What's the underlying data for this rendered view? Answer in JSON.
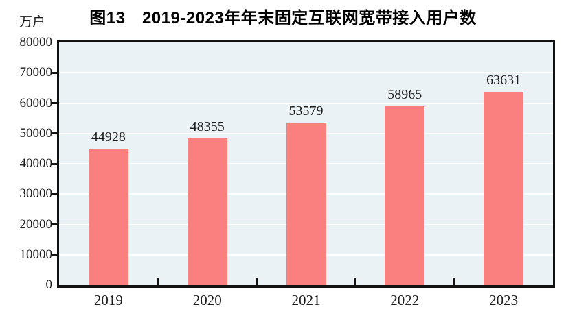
{
  "title": "图13　2019-2023年年末固定互联网宽带接入用户数",
  "unit_label": "万户",
  "chart_data": {
    "type": "bar",
    "title": "图13　2019-2023年年末固定互联网宽带接入用户数",
    "ylabel": "万户",
    "xlabel": "",
    "categories": [
      "2019",
      "2020",
      "2021",
      "2022",
      "2023"
    ],
    "values": [
      44928,
      48355,
      53579,
      58965,
      63631
    ],
    "value_labels_shown": true,
    "ylim": [
      0,
      80000
    ],
    "ytick_interval": 10000,
    "yticks": [
      0,
      10000,
      20000,
      30000,
      40000,
      50000,
      60000,
      70000,
      80000
    ],
    "grid": "horizontal white lines on tinted plot background",
    "legend": "none",
    "colors": {
      "bar": "#fa7f7f",
      "plot_background": "#eaf2f5",
      "gridline": "#ffffff",
      "axis": "#121212",
      "text": "#1c1c1c",
      "page_background": "#ffffff"
    }
  }
}
